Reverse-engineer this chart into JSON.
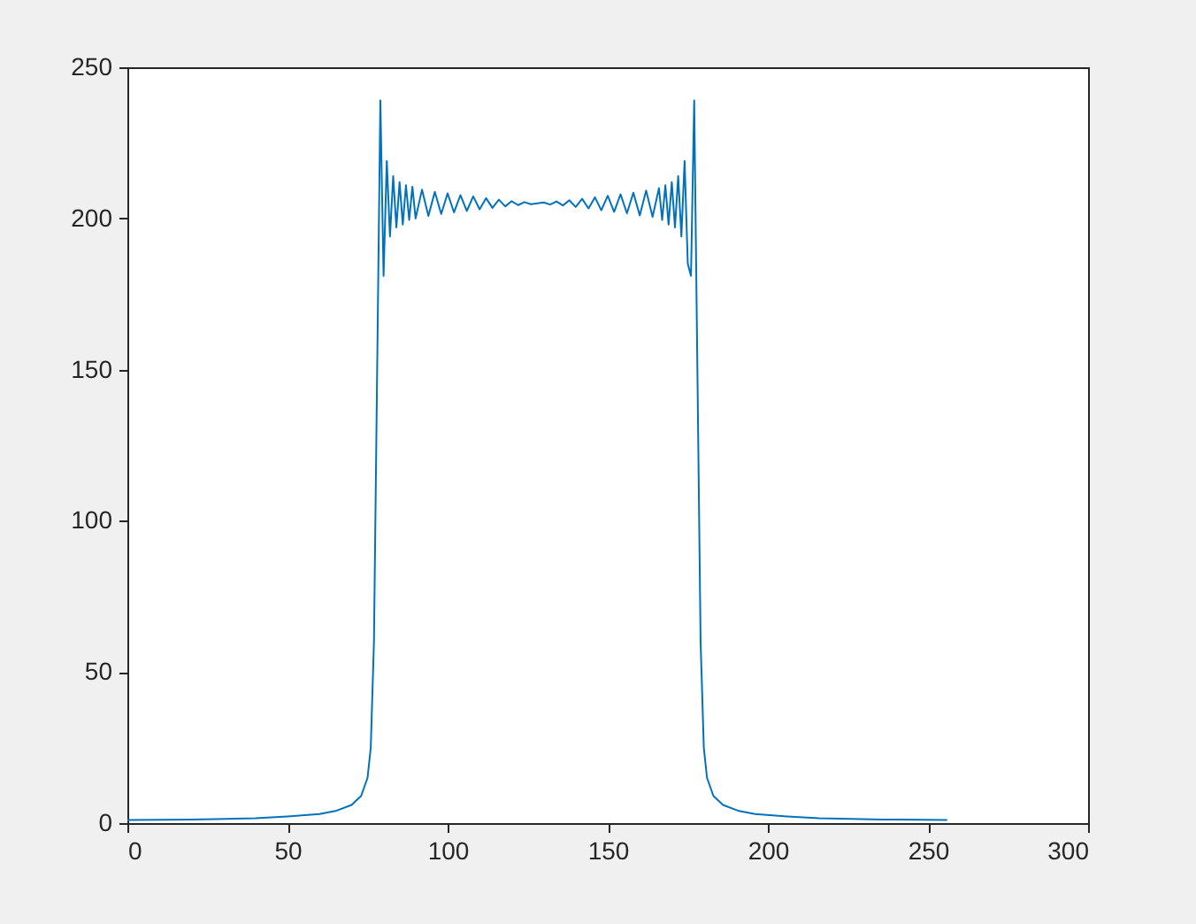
{
  "chart_data": {
    "type": "line",
    "x": [
      0,
      20,
      40,
      50,
      60,
      65,
      70,
      73,
      75,
      76,
      77,
      78,
      79,
      80,
      81,
      82,
      83,
      84,
      85,
      86,
      87,
      88,
      89,
      90,
      92,
      94,
      96,
      98,
      100,
      102,
      104,
      106,
      108,
      110,
      112,
      114,
      116,
      118,
      120,
      122,
      124,
      126,
      128,
      130,
      132,
      134,
      136,
      138,
      140,
      142,
      144,
      146,
      148,
      150,
      152,
      154,
      156,
      158,
      160,
      162,
      164,
      166,
      167,
      168,
      169,
      170,
      171,
      172,
      173,
      174,
      175,
      176,
      177,
      178,
      179,
      180,
      181,
      183,
      186,
      191,
      196,
      206,
      216,
      236,
      256
    ],
    "series": [
      {
        "color": "#0072bd",
        "values": [
          1,
          1.2,
          1.6,
          2.2,
          3,
          4,
          6,
          9,
          15,
          25,
          60,
          150,
          239,
          181,
          219,
          194,
          214,
          197,
          212,
          198,
          211,
          199.5,
          210.5,
          200,
          209.5,
          200.8,
          208.8,
          201.5,
          208.3,
          202,
          207.7,
          202.5,
          207.3,
          203,
          206.7,
          203.5,
          206.2,
          204,
          205.7,
          204.4,
          205.4,
          204.7,
          205,
          205.3,
          204.6,
          205.6,
          204.3,
          206,
          203.8,
          206.5,
          203.3,
          207,
          202.7,
          207.5,
          202.2,
          208,
          201.7,
          208.5,
          201,
          209.2,
          200.5,
          210,
          199.5,
          211,
          198,
          212,
          197,
          214,
          194,
          219,
          185,
          181,
          239,
          150,
          60,
          25,
          15,
          9,
          6,
          4,
          3,
          2.2,
          1.6,
          1.2,
          1
        ]
      }
    ],
    "xlim": [
      0,
      300
    ],
    "xticks": [
      0,
      50,
      100,
      150,
      200,
      250,
      300
    ],
    "ylim": [
      0,
      250
    ],
    "yticks": [
      0,
      50,
      100,
      150,
      200,
      250
    ],
    "grid": false
  }
}
